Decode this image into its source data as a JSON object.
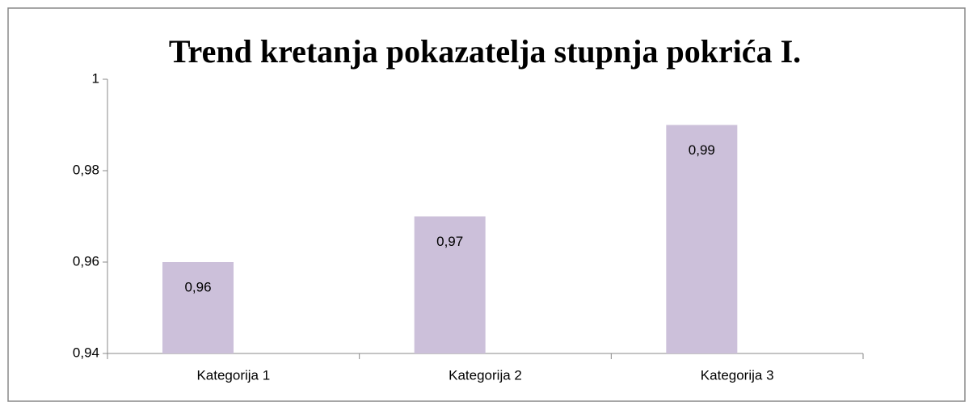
{
  "chart_data": {
    "type": "bar",
    "title": "Trend kretanja pokazatelja stupnja pokrića I.",
    "categories": [
      "Kategorija 1",
      "Kategorija 2",
      "Kategorija 3"
    ],
    "values": [
      0.96,
      0.97,
      0.99
    ],
    "value_labels": [
      "0,96",
      "0,97",
      "0,99"
    ],
    "color": "#ccc0da",
    "ylim": [
      0.94,
      1
    ],
    "yticks": [
      {
        "value": 0.94,
        "label": "0,94"
      },
      {
        "value": 0.96,
        "label": "0,96"
      },
      {
        "value": 0.98,
        "label": "0,98"
      },
      {
        "value": 1,
        "label": "1"
      }
    ],
    "grid": false
  }
}
